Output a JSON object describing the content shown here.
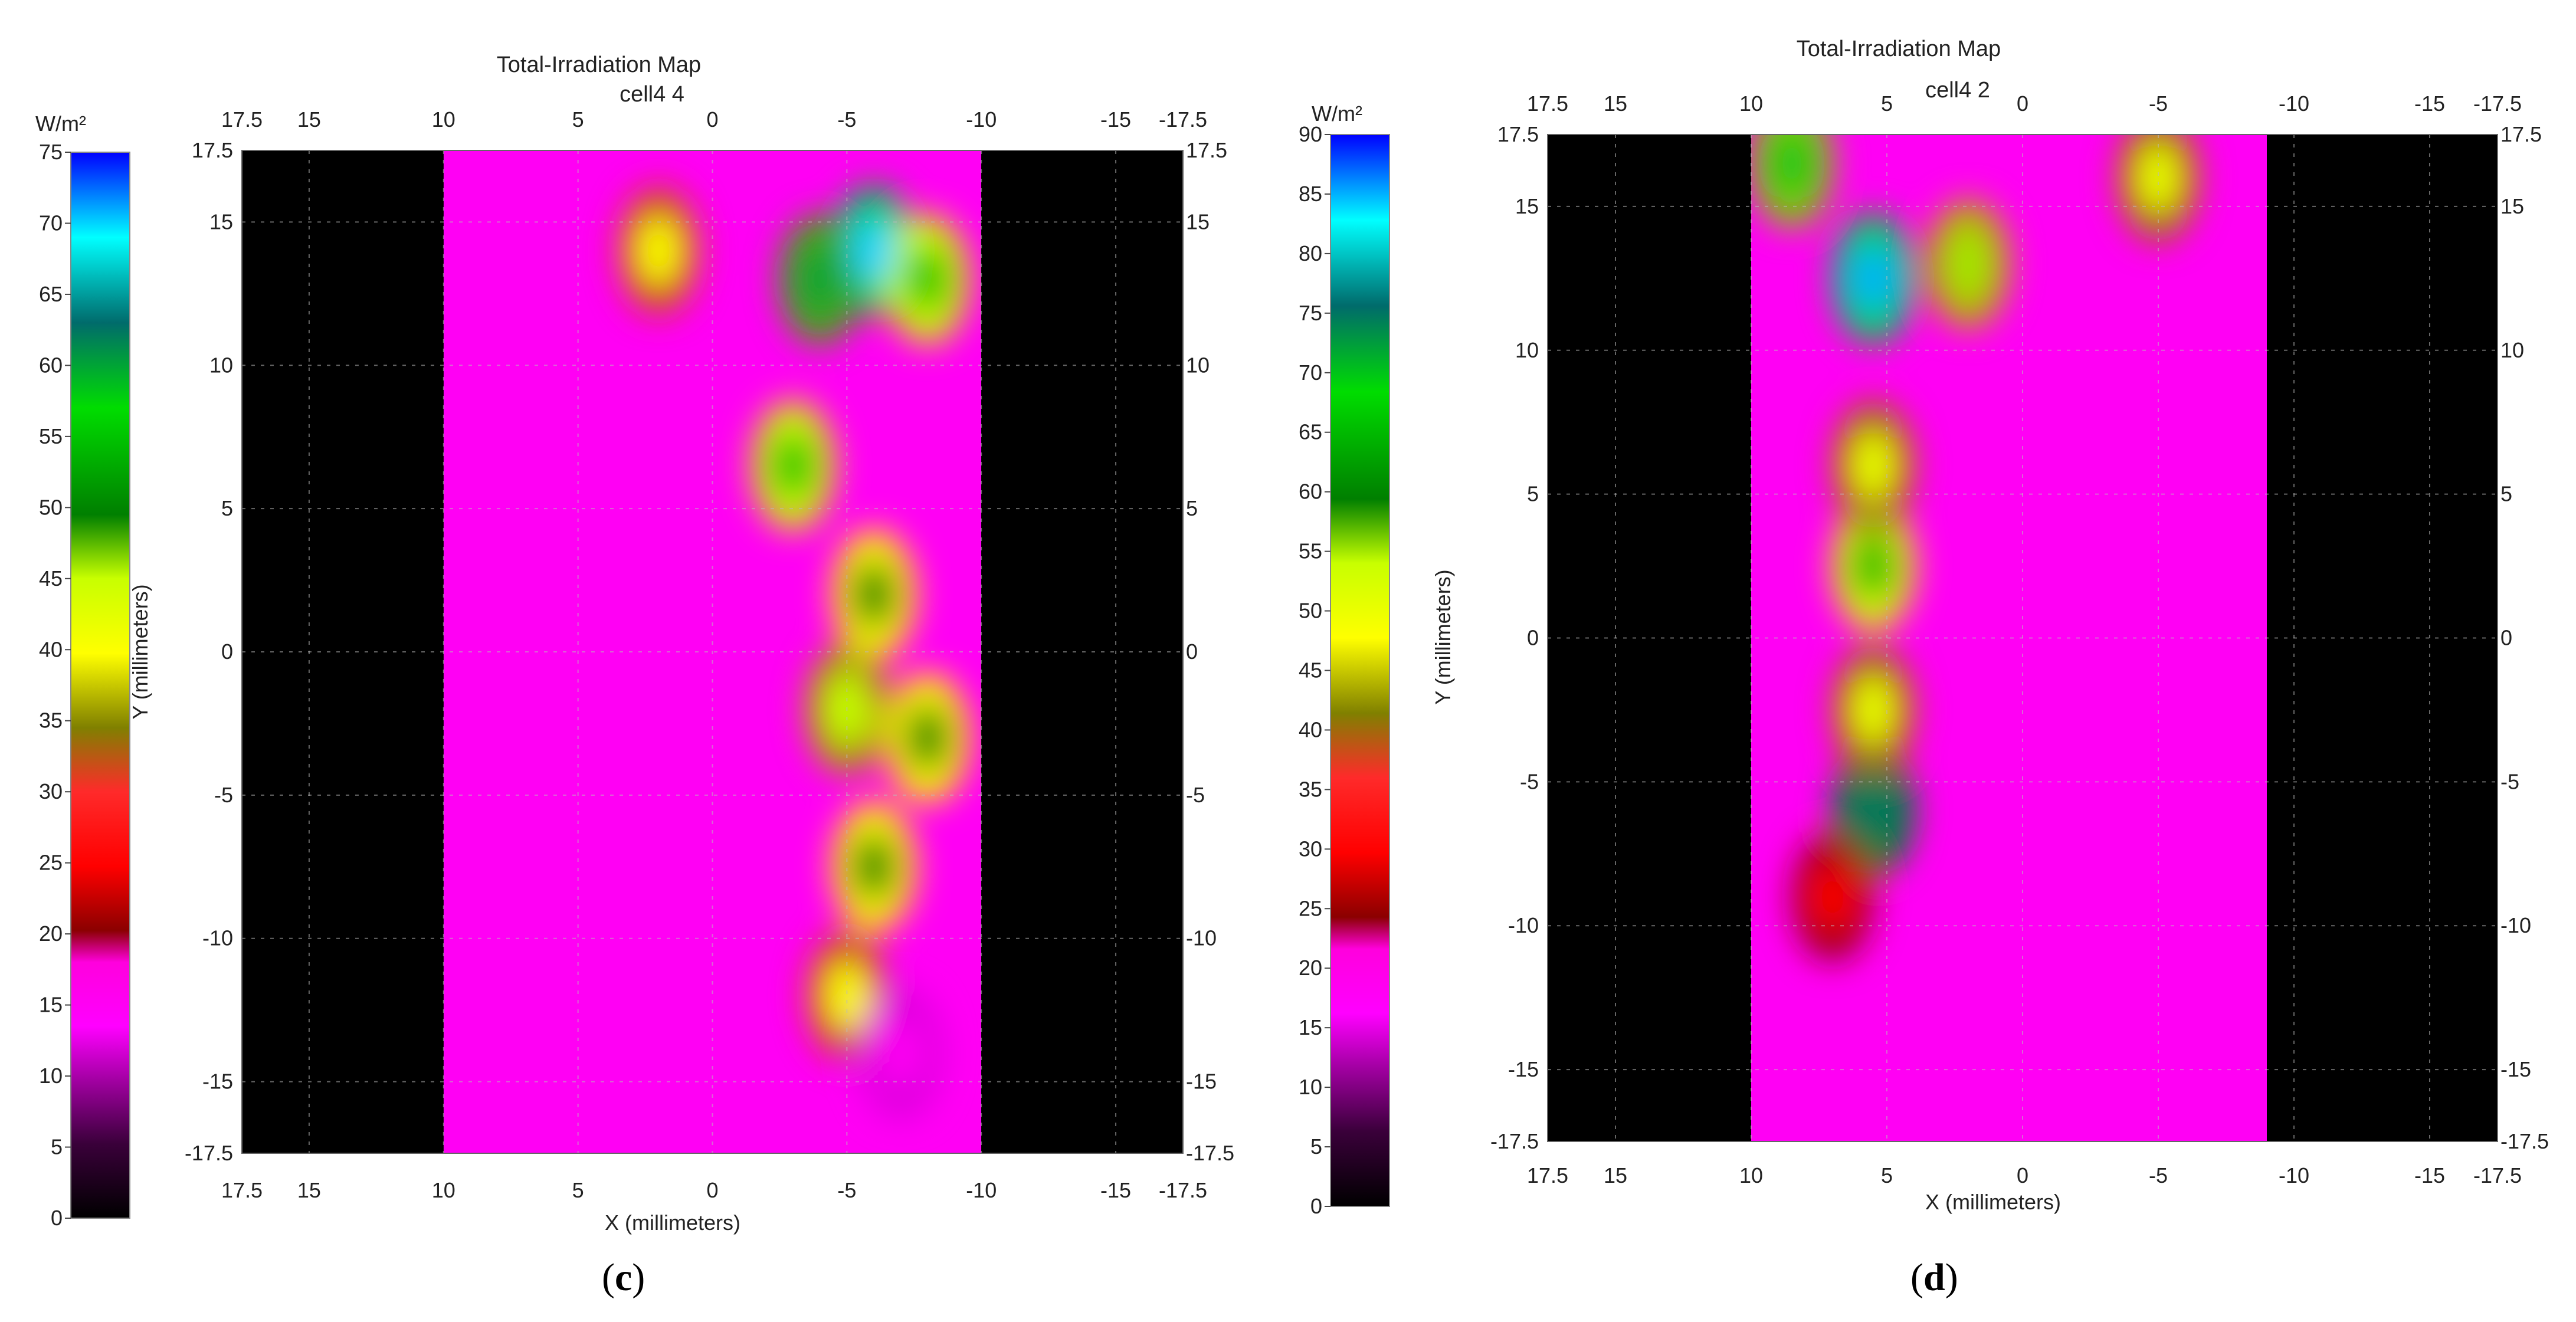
{
  "panels": [
    {
      "caption_open": "(",
      "caption_letter": "c",
      "caption_close": ")"
    },
    {
      "caption_open": "(",
      "caption_letter": "d",
      "caption_close": ")"
    }
  ],
  "chart_data": [
    {
      "type": "heatmap",
      "title": "Total-Irradiation Map",
      "subtitle": "cell4 4",
      "xlabel": "X (millimeters)",
      "ylabel": "Y (millimeters)",
      "colorbar_unit": "W/m²",
      "xlim": [
        17.5,
        -17.5
      ],
      "ylim": [
        -17.5,
        17.5
      ],
      "x_ticks": [
        "17.5",
        "15",
        "10",
        "5",
        "0",
        "-5",
        "-10",
        "-15",
        "-17.5"
      ],
      "x_tick_values": [
        17.5,
        15,
        10,
        5,
        0,
        -5,
        -10,
        -15,
        -17.5
      ],
      "y_ticks": [
        "17.5",
        "15",
        "10",
        "5",
        "0",
        "-5",
        "-10",
        "-15",
        "-17.5"
      ],
      "y_tick_values": [
        17.5,
        15,
        10,
        5,
        0,
        -5,
        -10,
        -15,
        -17.5
      ],
      "colorbar_ticks": [
        "75",
        "70",
        "65",
        "60",
        "55",
        "50",
        "45",
        "40",
        "35",
        "30",
        "25",
        "20",
        "15",
        "10",
        "5",
        "0"
      ],
      "colorbar_range": [
        0,
        75
      ],
      "grid": true,
      "colormap": [
        "#000000",
        "#6a006a",
        "#ff00ff",
        "#8b0000",
        "#ff0000",
        "#808000",
        "#ffff00",
        "#007f00",
        "#00ff00",
        "#008080",
        "#00ffff",
        "#0000ff"
      ],
      "illuminated_region_x": [
        10,
        -10
      ],
      "hotspots": [
        {
          "x": -6,
          "y": 14,
          "w": 70
        },
        {
          "x": -8,
          "y": 13,
          "w": 55
        },
        {
          "x": -4,
          "y": 13,
          "w": 60
        },
        {
          "x": -3,
          "y": 6.5,
          "w": 55
        },
        {
          "x": -6,
          "y": 2,
          "w": 50
        },
        {
          "x": -8,
          "y": -3,
          "w": 50
        },
        {
          "x": -6,
          "y": -7.5,
          "w": 50
        },
        {
          "x": -5,
          "y": -2,
          "w": 45
        },
        {
          "x": -5,
          "y": -12,
          "w": 40
        },
        {
          "x": 2,
          "y": 14,
          "w": 40
        },
        {
          "x": -7,
          "y": -14,
          "w": 15
        }
      ]
    },
    {
      "type": "heatmap",
      "title": "Total-Irradiation Map",
      "subtitle": "cell4 2",
      "xlabel": "X (millimeters)",
      "ylabel": "Y (millimeters)",
      "colorbar_unit": "W/m²",
      "xlim": [
        17.5,
        -17.5
      ],
      "ylim": [
        -17.5,
        17.5
      ],
      "x_ticks": [
        "17.5",
        "15",
        "10",
        "5",
        "0",
        "-5",
        "-10",
        "-15",
        "-17.5"
      ],
      "x_tick_values": [
        17.5,
        15,
        10,
        5,
        0,
        -5,
        -10,
        -15,
        -17.5
      ],
      "y_ticks": [
        "17.5",
        "15",
        "10",
        "5",
        "0",
        "-5",
        "-10",
        "-15",
        "-17.5"
      ],
      "y_tick_values": [
        17.5,
        15,
        10,
        5,
        0,
        -5,
        -10,
        -15,
        -17.5
      ],
      "colorbar_ticks": [
        "90",
        "85",
        "80",
        "75",
        "70",
        "65",
        "60",
        "55",
        "50",
        "45",
        "40",
        "35",
        "30",
        "25",
        "20",
        "15",
        "10",
        "5",
        "0"
      ],
      "colorbar_range": [
        0,
        90
      ],
      "grid": true,
      "colormap": [
        "#000000",
        "#6a006a",
        "#ff00ff",
        "#8b0000",
        "#ff0000",
        "#808000",
        "#ffff00",
        "#007f00",
        "#00ff00",
        "#008080",
        "#00ffff",
        "#0000ff"
      ],
      "illuminated_region_x": [
        10,
        -9
      ],
      "hotspots": [
        {
          "x": 5.5,
          "y": 12.5,
          "w": 85
        },
        {
          "x": 8.5,
          "y": 16.5,
          "w": 70
        },
        {
          "x": 5.5,
          "y": 2.5,
          "w": 65
        },
        {
          "x": 5.5,
          "y": -6,
          "w": 75
        },
        {
          "x": 5.5,
          "y": 6,
          "w": 50
        },
        {
          "x": 5.5,
          "y": -2.5,
          "w": 50
        },
        {
          "x": 2,
          "y": 13,
          "w": 55
        },
        {
          "x": -5,
          "y": 16,
          "w": 50
        },
        {
          "x": 7,
          "y": -9,
          "w": 30
        }
      ]
    }
  ]
}
